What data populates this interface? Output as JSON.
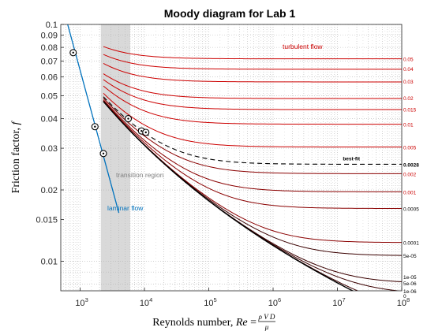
{
  "chart_data": {
    "type": "line",
    "title": "Moody diagram for Lab 1",
    "xlabel": "Reynolds number, Re = ρVD / μ",
    "xlabel_parts": {
      "text": "Reynolds number, ",
      "var": "Re",
      "eq": " = ",
      "num": "ρ V D",
      "den": "μ"
    },
    "ylabel": "Friction factor, f",
    "ylabel_parts": {
      "text": "Friction factor, ",
      "var": "f"
    },
    "x_scale": "log",
    "y_scale": "log",
    "xlim": [
      500,
      100000000
    ],
    "ylim": [
      0.0075,
      0.1
    ],
    "grid": "on (major and minor, dotted)",
    "x_ticks": [
      {
        "value": 1000,
        "base": "10",
        "exp": "3"
      },
      {
        "value": 10000,
        "base": "10",
        "exp": "4"
      },
      {
        "value": 100000,
        "base": "10",
        "exp": "5"
      },
      {
        "value": 1000000,
        "base": "10",
        "exp": "6"
      },
      {
        "value": 10000000,
        "base": "10",
        "exp": "7"
      },
      {
        "value": 100000000,
        "base": "10",
        "exp": "8"
      }
    ],
    "y_ticks": [
      {
        "value": 0.1,
        "label": "0.1"
      },
      {
        "value": 0.09,
        "label": "0.09"
      },
      {
        "value": 0.08,
        "label": "0.08"
      },
      {
        "value": 0.07,
        "label": "0.07"
      },
      {
        "value": 0.06,
        "label": "0.06"
      },
      {
        "value": 0.05,
        "label": "0.05"
      },
      {
        "value": 0.04,
        "label": "0.04"
      },
      {
        "value": 0.03,
        "label": "0.03"
      },
      {
        "value": 0.02,
        "label": "0.02"
      },
      {
        "value": 0.015,
        "label": "0.015"
      },
      {
        "value": 0.01,
        "label": "0.01"
      }
    ],
    "transition_region": {
      "x_start": 2100,
      "x_end": 6000,
      "label": "transition region"
    },
    "laminar": {
      "label": "laminar flow",
      "x_start": 600,
      "x_end": 4000
    },
    "turbulent_label": "turbulent flow",
    "roughness_curves": [
      {
        "label": "0.05",
        "value": 0.05,
        "f_end": 0.0716
      },
      {
        "label": "0.04",
        "value": 0.04,
        "f_end": 0.0652
      },
      {
        "label": "0.03",
        "value": 0.03,
        "f_end": 0.0575
      },
      {
        "label": "0.02",
        "value": 0.02,
        "f_end": 0.0491
      },
      {
        "label": "0.015",
        "value": 0.015,
        "f_end": 0.0438
      },
      {
        "label": "0.01",
        "value": 0.01,
        "f_end": 0.0379
      },
      {
        "label": "0.005",
        "value": 0.005,
        "f_end": 0.0304
      },
      {
        "label": "0.002",
        "value": 0.002,
        "f_end": 0.0234
      },
      {
        "label": "0.001",
        "value": 0.001,
        "f_end": 0.0196
      },
      {
        "label": "0.0005",
        "value": 0.0005,
        "f_end": 0.0167
      },
      {
        "label": "0.0001",
        "value": 0.0001,
        "f_end": 0.012
      },
      {
        "label": "5e-05",
        "value": 5e-05,
        "f_end": 0.0106
      },
      {
        "label": "1e-05",
        "value": 1e-05,
        "f_end": 0.0086
      },
      {
        "label": "5e-06",
        "value": 5e-06,
        "f_end": 0.0081
      },
      {
        "label": "1e-06",
        "value": 1e-06,
        "f_end": 0.0075
      },
      {
        "label": "0",
        "value": 0,
        "f_end": 0.0072
      }
    ],
    "best_fit": {
      "label": "best-fit",
      "roughness_label": "0.0028",
      "roughness": 0.0028
    },
    "experimental_points": [
      {
        "re": 780,
        "f": 0.076
      },
      {
        "re": 1700,
        "f": 0.037
      },
      {
        "re": 2300,
        "f": 0.0285
      },
      {
        "re": 5600,
        "f": 0.04
      },
      {
        "re": 9000,
        "f": 0.0355
      },
      {
        "re": 10500,
        "f": 0.035
      }
    ],
    "colors": {
      "roughness_curve": "#cc0000",
      "smooth_curve": "#000000",
      "laminar": "#0072bd",
      "turbulent_label": "#cc0000",
      "roughness_label": "#cc0000",
      "transition_fill": "#d9d9d9",
      "transition_label": "#808080",
      "grid": "#b3b3b3"
    }
  }
}
